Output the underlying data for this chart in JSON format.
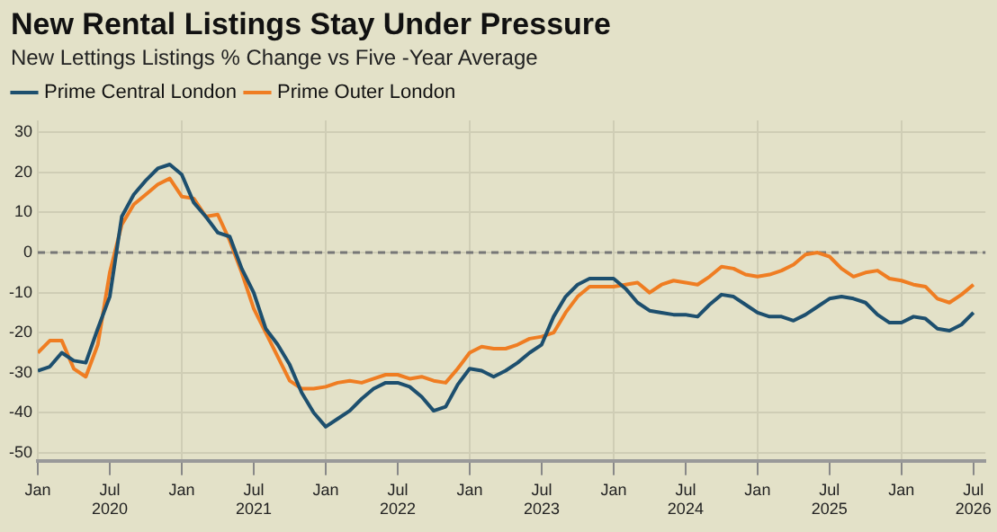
{
  "chart_data": {
    "type": "line",
    "title": "New Rental Listings Stay Under Pressure",
    "subtitle": "New Lettings Listings % Change vs Five -Year Average",
    "x": [
      "2020-01",
      "2020-02",
      "2020-03",
      "2020-04",
      "2020-05",
      "2020-06",
      "2020-07",
      "2020-08",
      "2020-09",
      "2020-10",
      "2020-11",
      "2020-12",
      "2021-01",
      "2021-02",
      "2021-03",
      "2021-04",
      "2021-05",
      "2021-06",
      "2021-07",
      "2021-08",
      "2021-09",
      "2021-10",
      "2021-11",
      "2021-12",
      "2022-01",
      "2022-02",
      "2022-03",
      "2022-04",
      "2022-05",
      "2022-06",
      "2022-07",
      "2022-08",
      "2022-09",
      "2022-10",
      "2022-11",
      "2022-12",
      "2023-01",
      "2023-02",
      "2023-03",
      "2023-04",
      "2023-05",
      "2023-06",
      "2023-07",
      "2023-08",
      "2023-09",
      "2023-10",
      "2023-11",
      "2023-12",
      "2024-01",
      "2024-02",
      "2024-03",
      "2024-04",
      "2024-05",
      "2024-06",
      "2024-07",
      "2024-08",
      "2024-09",
      "2024-10",
      "2024-11",
      "2024-12",
      "2025-01",
      "2025-02",
      "2025-03",
      "2025-04",
      "2025-05",
      "2025-06",
      "2025-07",
      "2025-08",
      "2025-09",
      "2025-10",
      "2025-11",
      "2025-12",
      "2026-01",
      "2026-02",
      "2026-03",
      "2026-04",
      "2026-05",
      "2026-06",
      "2026-07"
    ],
    "series": [
      {
        "name": "Prime Central London",
        "color": "#1d4f6e",
        "values": [
          -29.5,
          -28.5,
          -25,
          -27,
          -27.5,
          -19,
          -11,
          9,
          14.5,
          18,
          21,
          22,
          19.5,
          12.5,
          9,
          5,
          4,
          -4,
          -10,
          -19,
          -23,
          -28,
          -35,
          -40,
          -43.5,
          -41.5,
          -39.5,
          -36.5,
          -34,
          -32.5,
          -32.5,
          -33.5,
          -36,
          -39.5,
          -38.5,
          -33,
          -29,
          -29.5,
          -31,
          -29.5,
          -27.5,
          -25,
          -23,
          -16,
          -11,
          -8,
          -6.5,
          -6.5,
          -6.5,
          -9,
          -12.5,
          -14.5,
          -15,
          -15.5,
          -15.5,
          -16,
          -13,
          -10.5,
          -11,
          -13,
          -15,
          -16,
          -16,
          -17,
          -15.5,
          -13.5,
          -11.5,
          -11,
          -11.5,
          -12.5,
          -15.5,
          -17.5,
          -17.5,
          -16,
          -16.5,
          -19,
          -19.5,
          -18,
          -15
        ]
      },
      {
        "name": "Prime Outer London",
        "color": "#ef7d22",
        "values": [
          -25,
          -22,
          -22,
          -29,
          -31,
          -23,
          -5,
          7,
          12,
          14.5,
          17,
          18.5,
          14,
          13.5,
          9,
          9.5,
          3,
          -5,
          -14,
          -20,
          -26,
          -32,
          -34,
          -34,
          -33.5,
          -32.5,
          -32,
          -32.5,
          -31.5,
          -30.5,
          -30.5,
          -31.5,
          -31,
          -32,
          -32.5,
          -29,
          -25,
          -23.5,
          -24,
          -24,
          -23,
          -21.5,
          -21,
          -20,
          -15,
          -11,
          -8.5,
          -8.5,
          -8.5,
          -8,
          -7.5,
          -10,
          -8,
          -7,
          -7.5,
          -8,
          -6,
          -3.5,
          -4,
          -5.5,
          -6,
          -5.5,
          -4.5,
          -3,
          -0.5,
          0,
          -1,
          -4,
          -6,
          -5,
          -4.5,
          -6.5,
          -7,
          -8,
          -8.5,
          -11.5,
          -12.5,
          -10.5,
          -8
        ]
      }
    ],
    "xlim": [
      "2020-01",
      "2026-08"
    ],
    "xticks": [
      {
        "value": "2020-01",
        "label": "Jan"
      },
      {
        "value": "2020-07",
        "label": "Jul\n2020"
      },
      {
        "value": "2021-01",
        "label": "Jan"
      },
      {
        "value": "2021-07",
        "label": "Jul\n2021"
      },
      {
        "value": "2022-01",
        "label": "Jan"
      },
      {
        "value": "2022-07",
        "label": "Jul\n2022"
      },
      {
        "value": "2023-01",
        "label": "Jan"
      },
      {
        "value": "2023-07",
        "label": "Jul\n2023"
      },
      {
        "value": "2024-01",
        "label": "Jan"
      },
      {
        "value": "2024-07",
        "label": "Jul\n2024"
      },
      {
        "value": "2025-01",
        "label": "Jan"
      },
      {
        "value": "2025-07",
        "label": "Jul\n2025"
      },
      {
        "value": "2026-01",
        "label": "Jan"
      },
      {
        "value": "2026-07",
        "label": "Jul\n2026"
      }
    ],
    "ylim": [
      -52,
      33
    ],
    "yticks": [
      -50,
      -40,
      -30,
      -20,
      -10,
      0,
      10,
      20,
      30
    ],
    "ref_lines": [
      {
        "axis": "y",
        "value": 0,
        "color": "#777777",
        "line_style": "dashed"
      }
    ],
    "grid": true,
    "legend": "top left",
    "marker": "none",
    "line_style": "solid"
  }
}
